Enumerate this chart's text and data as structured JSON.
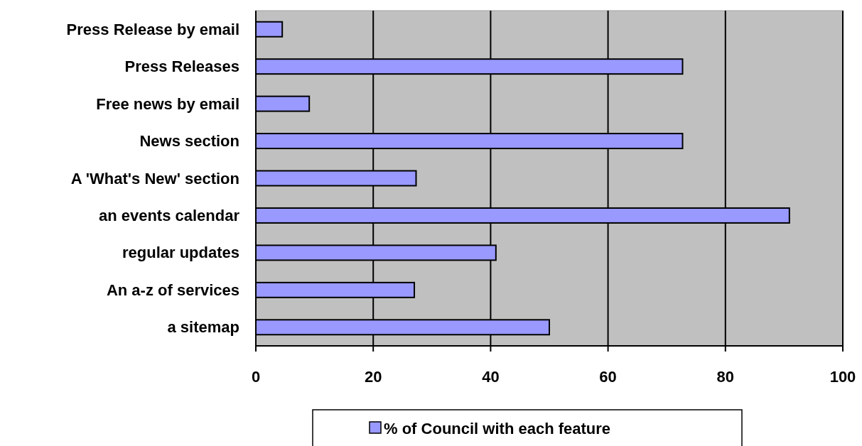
{
  "chart_data": {
    "type": "bar",
    "orientation": "horizontal",
    "categories": [
      "Press Release by email",
      "Press Releases",
      "Free news by email",
      "News section",
      "A 'What's New' section",
      "an events calendar",
      "regular updates",
      "An a-z of services",
      "a sitemap"
    ],
    "series": [
      {
        "name": "% of Council with each feature",
        "color": "#9999ff",
        "values": [
          4.5,
          72.7,
          9.1,
          72.7,
          27.3,
          90.9,
          40.9,
          27,
          50
        ]
      }
    ],
    "xlim": [
      0,
      100
    ],
    "xticks": [
      0,
      20,
      40,
      60,
      80,
      100
    ],
    "grid": "x",
    "legend": "bottom"
  }
}
